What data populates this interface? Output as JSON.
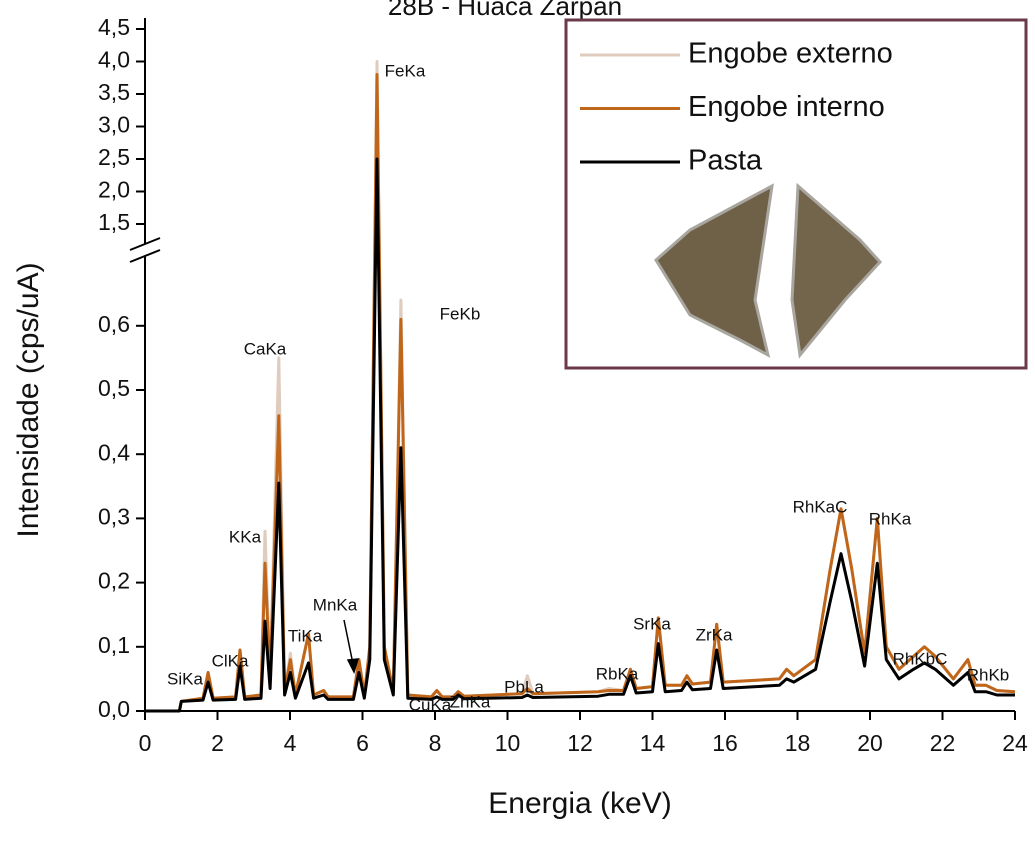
{
  "chart_data": {
    "type": "line",
    "title": "28B - Huaca Zarpan",
    "x_label": "Energia (keV)",
    "y_label": "Intensidade (cps/uA)",
    "xlim": [
      0,
      24
    ],
    "xticks": [
      0,
      2,
      4,
      6,
      8,
      10,
      12,
      14,
      16,
      18,
      20,
      22,
      24
    ],
    "ylim": [
      0,
      4.5
    ],
    "ybreak": [
      0.7,
      1.25
    ],
    "yticks": [
      {
        "value": 0,
        "label": "0,0"
      },
      {
        "value": 0.1,
        "label": "0,1"
      },
      {
        "value": 0.2,
        "label": "0,2"
      },
      {
        "value": 0.3,
        "label": "0,3"
      },
      {
        "value": 0.4,
        "label": "0,4"
      },
      {
        "value": 0.5,
        "label": "0,5"
      },
      {
        "value": 0.6,
        "label": "0,6"
      },
      {
        "value": 1.5,
        "label": "1,5"
      },
      {
        "value": 2.0,
        "label": "2,0"
      },
      {
        "value": 2.5,
        "label": "2,5"
      },
      {
        "value": 3.0,
        "label": "3,0"
      },
      {
        "value": 3.5,
        "label": "3,5"
      },
      {
        "value": 4.0,
        "label": "4,0"
      },
      {
        "value": 4.5,
        "label": "4,5"
      }
    ],
    "legend": "top-right",
    "x": [
      0,
      0.95,
      1.0,
      1.6,
      1.74,
      1.88,
      2.5,
      2.62,
      2.75,
      3.2,
      3.31,
      3.45,
      3.69,
      3.85,
      4.01,
      4.15,
      4.51,
      4.65,
      4.93,
      5.05,
      5.75,
      5.9,
      6.05,
      6.2,
      6.4,
      6.6,
      6.85,
      7.06,
      7.25,
      7.9,
      8.05,
      8.2,
      8.5,
      8.64,
      8.8,
      10.4,
      10.55,
      10.7,
      12.5,
      12.8,
      13.2,
      13.39,
      13.55,
      14.0,
      14.16,
      14.35,
      14.8,
      14.95,
      15.1,
      15.6,
      15.77,
      15.95,
      17.5,
      17.7,
      17.9,
      18.5,
      18.9,
      19.2,
      19.5,
      19.85,
      20.2,
      20.45,
      20.8,
      21.2,
      21.5,
      21.8,
      22.3,
      22.7,
      22.9,
      23.2,
      23.5,
      24
    ],
    "series": [
      {
        "name": "Engobe externo",
        "color": "#dfccbe",
        "values": [
          0,
          0,
          0.015,
          0.02,
          0.06,
          0.02,
          0.022,
          0.095,
          0.022,
          0.025,
          0.28,
          0.05,
          0.55,
          0.03,
          0.09,
          0.025,
          0.12,
          0.025,
          0.032,
          0.022,
          0.022,
          0.08,
          0.025,
          0.1,
          4.0,
          0.1,
          0.03,
          0.64,
          0.025,
          0.022,
          0.032,
          0.022,
          0.022,
          0.03,
          0.023,
          0.027,
          0.055,
          0.027,
          0.03,
          0.035,
          0.032,
          0.065,
          0.035,
          0.038,
          0.145,
          0.04,
          0.04,
          0.055,
          0.042,
          0.045,
          0.135,
          0.045,
          0.05,
          0.065,
          0.055,
          0.08,
          0.22,
          0.315,
          0.22,
          0.09,
          0.3,
          0.1,
          0.065,
          0.085,
          0.1,
          0.085,
          0.05,
          0.08,
          0.04,
          0.04,
          0.032,
          0.03
        ]
      },
      {
        "name": "Engobe interno",
        "color": "#c0661a",
        "values": [
          0,
          0,
          0.015,
          0.02,
          0.06,
          0.02,
          0.022,
          0.095,
          0.022,
          0.025,
          0.23,
          0.05,
          0.46,
          0.03,
          0.08,
          0.025,
          0.12,
          0.025,
          0.032,
          0.022,
          0.022,
          0.08,
          0.025,
          0.1,
          3.8,
          0.1,
          0.03,
          0.61,
          0.025,
          0.022,
          0.032,
          0.022,
          0.022,
          0.03,
          0.023,
          0.027,
          0.035,
          0.027,
          0.03,
          0.032,
          0.032,
          0.065,
          0.035,
          0.038,
          0.145,
          0.04,
          0.04,
          0.055,
          0.042,
          0.045,
          0.135,
          0.045,
          0.05,
          0.065,
          0.055,
          0.08,
          0.22,
          0.315,
          0.22,
          0.09,
          0.3,
          0.1,
          0.065,
          0.085,
          0.1,
          0.085,
          0.05,
          0.08,
          0.04,
          0.04,
          0.032,
          0.03
        ]
      },
      {
        "name": "Pasta",
        "color": "#000000",
        "values": [
          0,
          0,
          0.015,
          0.017,
          0.045,
          0.017,
          0.018,
          0.07,
          0.018,
          0.02,
          0.14,
          0.035,
          0.355,
          0.025,
          0.06,
          0.02,
          0.075,
          0.02,
          0.025,
          0.018,
          0.018,
          0.06,
          0.02,
          0.08,
          2.5,
          0.08,
          0.025,
          0.41,
          0.02,
          0.018,
          0.022,
          0.018,
          0.018,
          0.025,
          0.019,
          0.021,
          0.025,
          0.021,
          0.023,
          0.026,
          0.026,
          0.055,
          0.028,
          0.03,
          0.105,
          0.03,
          0.032,
          0.045,
          0.033,
          0.035,
          0.095,
          0.035,
          0.04,
          0.05,
          0.045,
          0.065,
          0.17,
          0.245,
          0.17,
          0.07,
          0.23,
          0.08,
          0.05,
          0.065,
          0.075,
          0.065,
          0.04,
          0.06,
          0.03,
          0.03,
          0.025,
          0.025
        ]
      }
    ],
    "annotations": [
      "SiKa",
      "ClKa",
      "KKa",
      "CaKa",
      "TiKa",
      "MnKa",
      "FeKa",
      "FeKb",
      "CuKa",
      "ZnKa",
      "PbLa",
      "RbKa",
      "SrKa",
      "ZrKa",
      "RhKaC",
      "RhKa",
      "RhKbC",
      "RhKb"
    ]
  }
}
